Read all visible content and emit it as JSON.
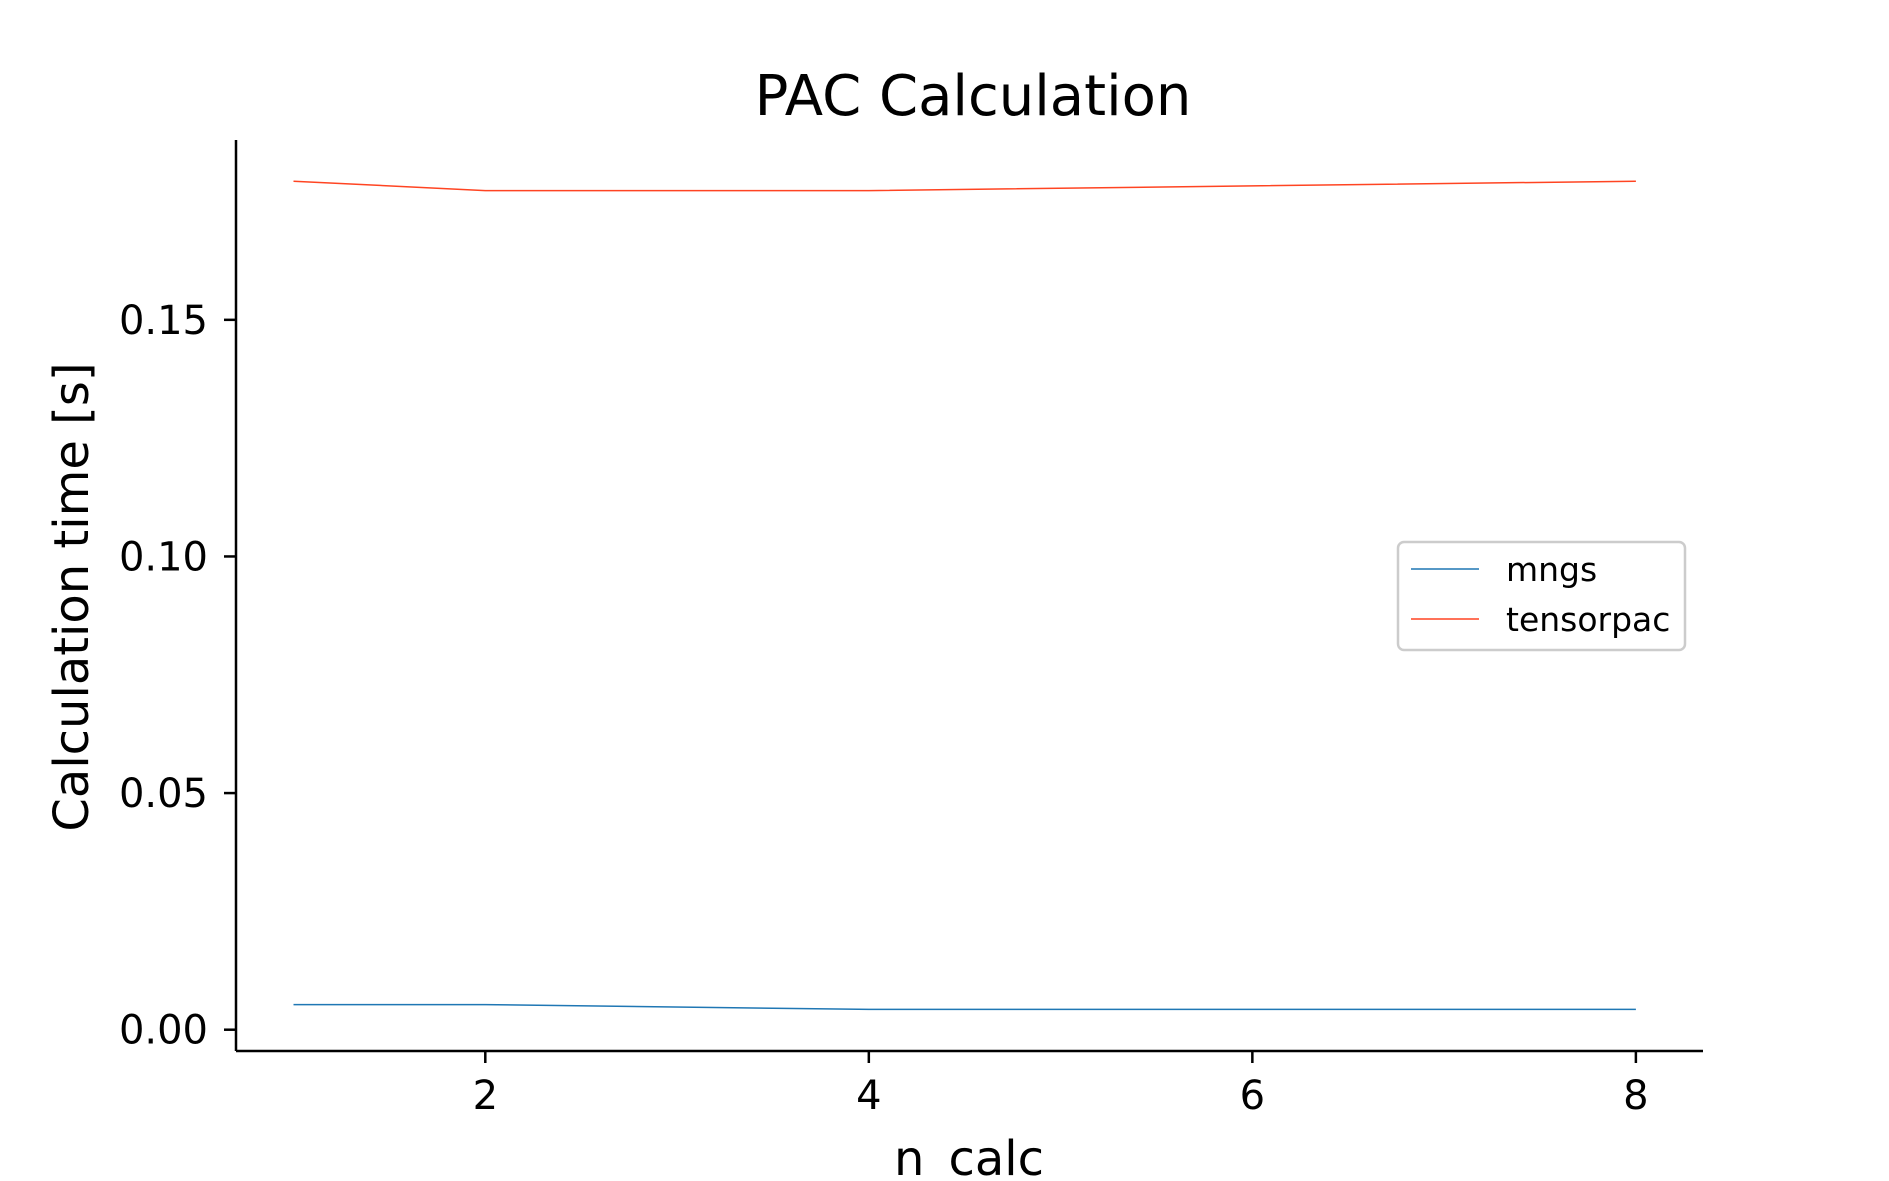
{
  "chart_data": {
    "type": "line",
    "title": "PAC Calculation",
    "xlabel": "n_calc",
    "ylabel": "Calculation time [s]",
    "x": [
      1,
      2,
      4,
      6,
      8
    ],
    "xlim": [
      0.7,
      8.35
    ],
    "ylim": [
      -0.0045,
      0.188
    ],
    "xticks": [
      2,
      4,
      6,
      8
    ],
    "xtick_labels": [
      "2",
      "4",
      "6",
      "8"
    ],
    "yticks": [
      0.0,
      0.05,
      0.1,
      0.15
    ],
    "ytick_labels": [
      "0.00",
      "0.05",
      "0.10",
      "0.15"
    ],
    "grid": false,
    "legend_position": "center-right",
    "series": [
      {
        "name": "mngs",
        "color": "#1f77b4",
        "values": [
          0.0053,
          0.0053,
          0.0043,
          0.0043,
          0.0043
        ]
      },
      {
        "name": "tensorpac",
        "color": "#ff4422",
        "values": [
          0.1793,
          0.1773,
          0.1773,
          0.1783,
          0.1793
        ]
      }
    ]
  }
}
